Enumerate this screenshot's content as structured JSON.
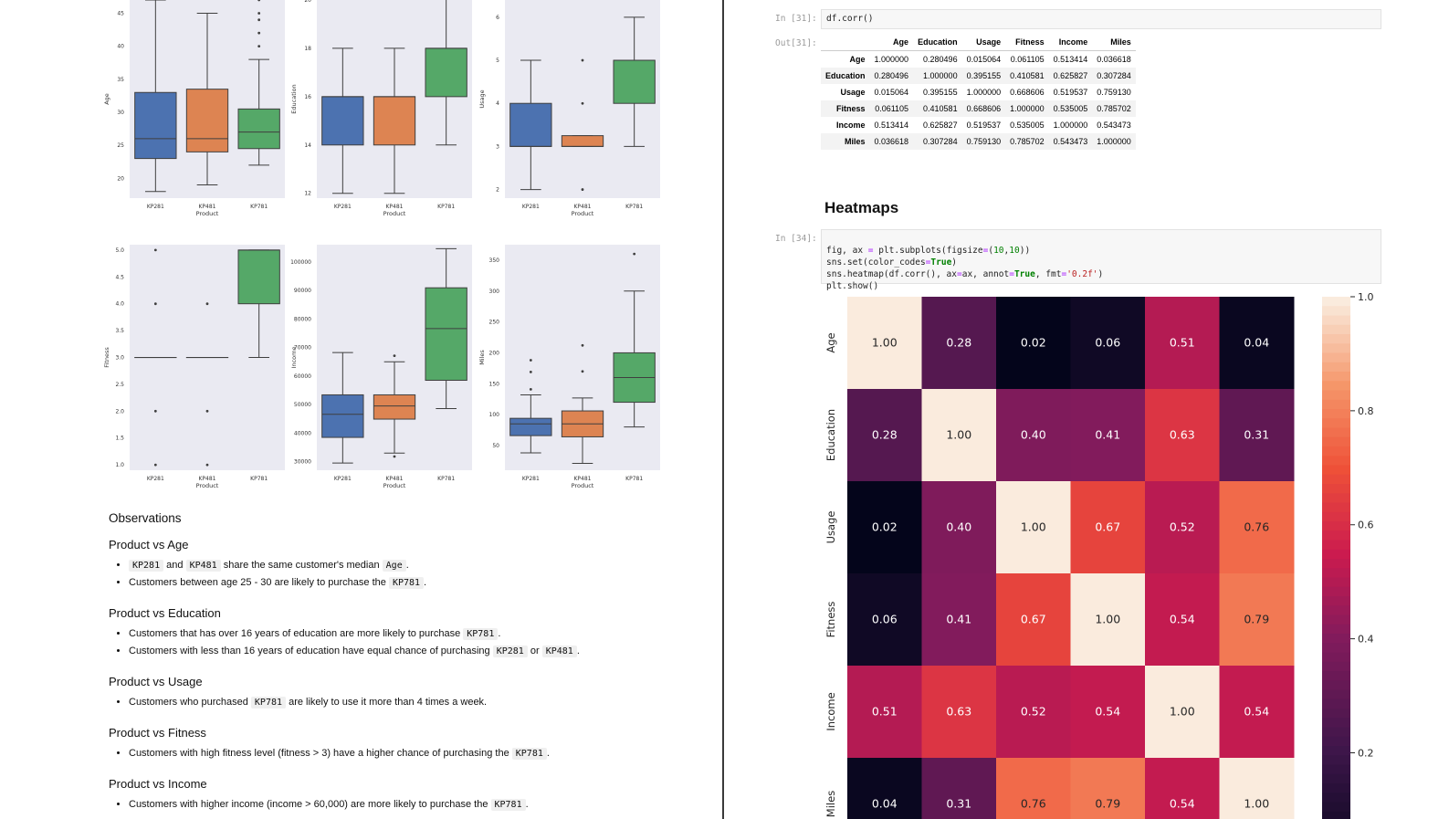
{
  "colors": {
    "kp281": "#4c72b0",
    "kp481": "#dd8452",
    "kp781": "#55a868",
    "plot_bg": "#eaeaf2",
    "divider": "#3a3a3a"
  },
  "boxplots": {
    "categories": [
      "KP281",
      "KP481",
      "KP781"
    ],
    "xlabel": "Product",
    "rows": [
      [
        {
          "ylabel": "Age",
          "ticks": [
            "20",
            "25",
            "30",
            "35",
            "40",
            "45"
          ],
          "tick_values": [
            20,
            25,
            30,
            35,
            40,
            45
          ],
          "ylim": [
            17,
            47
          ],
          "boxes": [
            {
              "whislo": 18,
              "q1": 23,
              "med": 26,
              "q3": 33,
              "whishi": 47,
              "fliers": []
            },
            {
              "whislo": 19,
              "q1": 24,
              "med": 26,
              "q3": 33.5,
              "whishi": 45,
              "fliers": []
            },
            {
              "whislo": 22,
              "q1": 24.5,
              "med": 27,
              "q3": 30.5,
              "whishi": 38,
              "fliers": [
                40,
                42,
                44,
                45,
                47
              ]
            }
          ]
        },
        {
          "ylabel": "Education",
          "ticks": [
            "12",
            "14",
            "16",
            "18",
            "20"
          ],
          "tick_values": [
            12,
            14,
            16,
            18,
            20
          ],
          "ylim": [
            11.8,
            20
          ]
        },
        {
          "ylabel": "Usage",
          "ticks": [
            "2",
            "3",
            "4",
            "5",
            "6"
          ],
          "tick_values": [
            2,
            3,
            4,
            5,
            6
          ],
          "ylim": [
            1.8,
            6.4
          ]
        }
      ],
      [
        {
          "ylabel": "Fitness",
          "ticks": [
            "1.0",
            "1.5",
            "2.0",
            "2.5",
            "3.0",
            "3.5",
            "4.0",
            "4.5",
            "5.0"
          ],
          "tick_values": [
            1,
            1.5,
            2,
            2.5,
            3,
            3.5,
            4,
            4.5,
            5
          ],
          "ylim": [
            0.9,
            5.1
          ]
        },
        {
          "ylabel": "Income",
          "ticks": [
            "30000",
            "40000",
            "50000",
            "60000",
            "70000",
            "80000",
            "90000",
            "100000"
          ],
          "tick_values": [
            30000,
            40000,
            50000,
            60000,
            70000,
            80000,
            90000,
            100000
          ],
          "ylim": [
            27000,
            106000
          ]
        },
        {
          "ylabel": "Miles",
          "ticks": [
            "50",
            "100",
            "150",
            "200",
            "250",
            "300",
            "350"
          ],
          "tick_values": [
            50,
            100,
            150,
            200,
            250,
            300,
            350
          ],
          "ylim": [
            10,
            375
          ]
        }
      ]
    ]
  },
  "chart_data": [
    {
      "type": "box",
      "xlabel": "Product",
      "ylabel": "Age",
      "categories": [
        "KP281",
        "KP481",
        "KP781"
      ],
      "ylim": [
        17,
        47
      ],
      "boxes": [
        {
          "whislo": 18,
          "q1": 23,
          "med": 26,
          "q3": 33,
          "whishi": 47,
          "fliers": []
        },
        {
          "whislo": 19,
          "q1": 24,
          "med": 26,
          "q3": 33.5,
          "whishi": 45,
          "fliers": []
        },
        {
          "whislo": 22,
          "q1": 24.5,
          "med": 27,
          "q3": 30.5,
          "whishi": 38,
          "fliers": [
            40,
            42,
            44,
            45,
            47
          ]
        }
      ]
    },
    {
      "type": "box",
      "xlabel": "Product",
      "ylabel": "Education",
      "categories": [
        "KP281",
        "KP481",
        "KP781"
      ],
      "ylim": [
        11.8,
        20
      ],
      "boxes": [
        {
          "whislo": 12,
          "q1": 14,
          "med": 16,
          "q3": 16,
          "whishi": 18,
          "fliers": []
        },
        {
          "whislo": 12,
          "q1": 14,
          "med": 16,
          "q3": 16,
          "whishi": 18,
          "fliers": []
        },
        {
          "whislo": 14,
          "q1": 16,
          "med": 18,
          "q3": 18,
          "whishi": 21,
          "fliers": []
        }
      ]
    },
    {
      "type": "box",
      "xlabel": "Product",
      "ylabel": "Usage",
      "categories": [
        "KP281",
        "KP481",
        "KP781"
      ],
      "ylim": [
        1.8,
        6.4
      ],
      "boxes": [
        {
          "whislo": 2,
          "q1": 3,
          "med": 3,
          "q3": 4,
          "whishi": 5,
          "fliers": []
        },
        {
          "whislo": 3,
          "q1": 3,
          "med": 3,
          "q3": 3.25,
          "whishi": 3.25,
          "fliers": [
            2,
            4,
            5
          ]
        },
        {
          "whislo": 3,
          "q1": 4,
          "med": 5,
          "q3": 5,
          "whishi": 6,
          "fliers": []
        }
      ]
    },
    {
      "type": "box",
      "xlabel": "Product",
      "ylabel": "Fitness",
      "categories": [
        "KP281",
        "KP481",
        "KP781"
      ],
      "ylim": [
        0.9,
        5.1
      ],
      "boxes": [
        {
          "whislo": 3,
          "q1": 3,
          "med": 3,
          "q3": 3,
          "whishi": 3,
          "fliers": [
            1,
            2,
            4,
            5
          ]
        },
        {
          "whislo": 3,
          "q1": 3,
          "med": 3,
          "q3": 3,
          "whishi": 3,
          "fliers": [
            1,
            2,
            4
          ]
        },
        {
          "whislo": 3,
          "q1": 4,
          "med": 5,
          "q3": 5,
          "whishi": 5,
          "fliers": []
        }
      ]
    },
    {
      "type": "box",
      "xlabel": "Product",
      "ylabel": "Income",
      "categories": [
        "KP281",
        "KP481",
        "KP781"
      ],
      "ylim": [
        27000,
        106000
      ],
      "boxes": [
        {
          "whislo": 29500,
          "q1": 38500,
          "med": 46600,
          "q3": 53400,
          "whishi": 68200,
          "fliers": []
        },
        {
          "whislo": 33000,
          "q1": 44900,
          "med": 49500,
          "q3": 53400,
          "whishi": 65000,
          "fliers": [
            31800,
            67100
          ]
        },
        {
          "whislo": 48600,
          "q1": 58500,
          "med": 76600,
          "q3": 90900,
          "whishi": 104600,
          "fliers": []
        }
      ]
    },
    {
      "type": "box",
      "xlabel": "Product",
      "ylabel": "Miles",
      "categories": [
        "KP281",
        "KP481",
        "KP781"
      ],
      "ylim": [
        10,
        375
      ],
      "boxes": [
        {
          "whislo": 38,
          "q1": 66,
          "med": 85,
          "q3": 94,
          "whishi": 132,
          "fliers": [
            141,
            169,
            188
          ]
        },
        {
          "whislo": 21,
          "q1": 64,
          "med": 85,
          "q3": 106,
          "whishi": 127,
          "fliers": [
            170,
            212
          ]
        },
        {
          "whislo": 80,
          "q1": 120,
          "med": 160,
          "q3": 200,
          "whishi": 300,
          "fliers": [
            360
          ]
        }
      ]
    },
    {
      "type": "heatmap",
      "x": [
        "Age",
        "Education",
        "Usage",
        "Fitness",
        "Income",
        "Miles"
      ],
      "y": [
        "Age",
        "Education",
        "Usage",
        "Fitness",
        "Income",
        "Miles"
      ],
      "values": [
        [
          1.0,
          0.28,
          0.02,
          0.06,
          0.51,
          0.04
        ],
        [
          0.28,
          1.0,
          0.4,
          0.41,
          0.63,
          0.31
        ],
        [
          0.02,
          0.4,
          1.0,
          0.67,
          0.52,
          0.76
        ],
        [
          0.06,
          0.41,
          0.67,
          1.0,
          0.54,
          0.79
        ],
        [
          0.51,
          0.63,
          0.52,
          0.54,
          1.0,
          0.54
        ],
        [
          0.04,
          0.31,
          0.76,
          0.79,
          0.54,
          1.0
        ]
      ],
      "colorbar_ticks": [
        "0.2",
        "0.4",
        "0.6",
        "0.8",
        "1.0"
      ],
      "colorbar_values": [
        0.2,
        0.4,
        0.6,
        0.8,
        1.0
      ],
      "vmin": 0.015,
      "vmax": 1.0
    }
  ],
  "observations": {
    "title": "Observations",
    "sections": [
      {
        "heading": "Product vs Age",
        "items": [
          [
            {
              "code": "KP281"
            },
            {
              "text": " and "
            },
            {
              "code": "KP481"
            },
            {
              "text": " share the same customer's median "
            },
            {
              "code": "Age"
            },
            {
              "text": "."
            }
          ],
          [
            {
              "text": "Customers between age 25 - 30 are likely to purchase the "
            },
            {
              "code": "KP781"
            },
            {
              "text": "."
            }
          ]
        ]
      },
      {
        "heading": "Product vs Education",
        "items": [
          [
            {
              "text": "Customers that has over 16 years of education are more likely to purchase "
            },
            {
              "code": "KP781"
            },
            {
              "text": "."
            }
          ],
          [
            {
              "text": "Customers with less than 16 years of education have equal chance of purchasing "
            },
            {
              "code": "KP281"
            },
            {
              "text": " or "
            },
            {
              "code": "KP481"
            },
            {
              "text": "."
            }
          ]
        ]
      },
      {
        "heading": "Product vs Usage",
        "items": [
          [
            {
              "text": "Customers who purchased "
            },
            {
              "code": "KP781"
            },
            {
              "text": " are likely to use it more than 4 times a week."
            }
          ]
        ]
      },
      {
        "heading": "Product vs Fitness",
        "items": [
          [
            {
              "text": "Customers with high fitness level (fitness > 3) have a higher chance of purchasing the "
            },
            {
              "code": "KP781"
            },
            {
              "text": "."
            }
          ]
        ]
      },
      {
        "heading": "Product vs Income",
        "items": [
          [
            {
              "text": "Customers with higher income (income > 60,000) are more likely to purchase the "
            },
            {
              "code": "KP781"
            },
            {
              "text": "."
            }
          ]
        ]
      }
    ]
  },
  "cells": {
    "corr_in_prompt": "In [31]:",
    "corr_code": "df.corr()",
    "corr_out_prompt": "Out[31]:",
    "corr_table": {
      "columns": [
        "Age",
        "Education",
        "Usage",
        "Fitness",
        "Income",
        "Miles"
      ],
      "rows": [
        {
          "index": "Age",
          "values": [
            "1.000000",
            "0.280496",
            "0.015064",
            "0.061105",
            "0.513414",
            "0.036618"
          ]
        },
        {
          "index": "Education",
          "values": [
            "0.280496",
            "1.000000",
            "0.395155",
            "0.410581",
            "0.625827",
            "0.307284"
          ]
        },
        {
          "index": "Usage",
          "values": [
            "0.015064",
            "0.395155",
            "1.000000",
            "0.668606",
            "0.519537",
            "0.759130"
          ]
        },
        {
          "index": "Fitness",
          "values": [
            "0.061105",
            "0.410581",
            "0.668606",
            "1.000000",
            "0.535005",
            "0.785702"
          ]
        },
        {
          "index": "Income",
          "values": [
            "0.513414",
            "0.625827",
            "0.519537",
            "0.535005",
            "1.000000",
            "0.543473"
          ]
        },
        {
          "index": "Miles",
          "values": [
            "0.036618",
            "0.307284",
            "0.759130",
            "0.785702",
            "0.543473",
            "1.000000"
          ]
        }
      ]
    },
    "heatmaps_heading": "Heatmaps",
    "heat_in_prompt": "In [34]:",
    "heat_code_lines": [
      "fig, ax = plt.subplots(figsize=(10,10))",
      "sns.set(color_codes=True)",
      "sns.heatmap(df.corr(), ax=ax, annot=True, fmt='0.2f')",
      "plt.show()"
    ]
  }
}
